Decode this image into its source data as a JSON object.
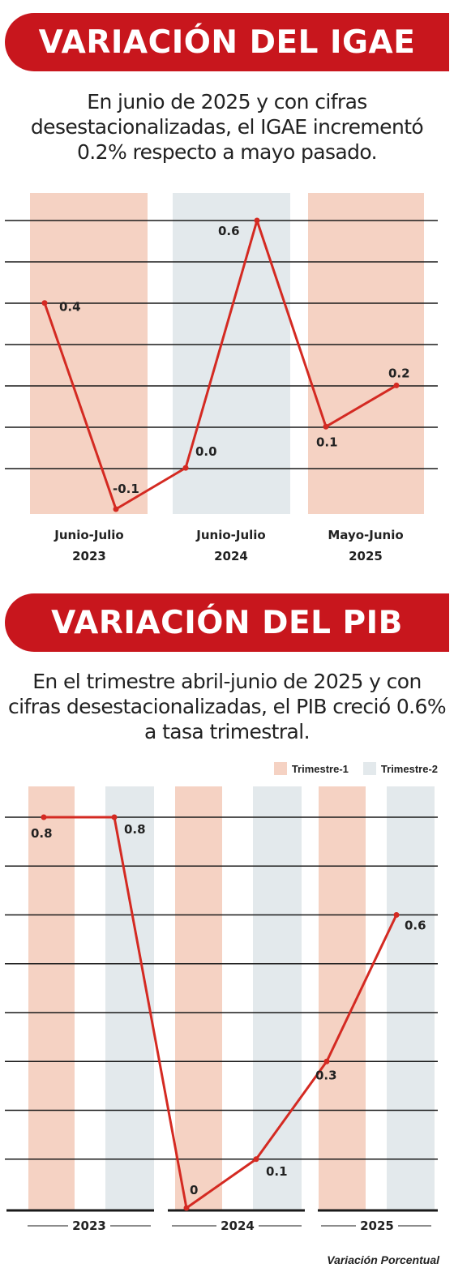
{
  "igae": {
    "title": "VARIACIÓN DEL IGAE",
    "subtitle": "En junio de 2025 y con cifras desestacionalizadas, el IGAE incrementó 0.2% respecto a mayo pasado."
  },
  "pib": {
    "title": "VARIACIÓN DEL PIB",
    "subtitle": "En el trimestre abril-junio de 2025 y con cifras desestacionalizadas, el PIB creció 0.6% a tasa trimestral.",
    "legend": [
      "Trimestre-1",
      "Trimestre-2"
    ]
  },
  "source": "Variación Porcentual",
  "colors": {
    "red": "#c8161d",
    "band_peach": "#f5d2c3",
    "band_blue": "#e3e9ec",
    "line": "#d42a22"
  },
  "chart_data": [
    {
      "type": "line",
      "title": "VARIACIÓN DEL IGAE",
      "groups": [
        "Junio-Julio 2023",
        "Junio-Julio 2024",
        "Mayo-Junio 2025"
      ],
      "points": [
        {
          "group": "Junio-Julio 2023",
          "label": "0.4",
          "y": 0.4
        },
        {
          "group": "Junio-Julio 2023",
          "label": "-0.1",
          "y": -0.1
        },
        {
          "group": "Junio-Julio 2024",
          "label": "0.0",
          "y": 0.0
        },
        {
          "group": "Junio-Julio 2024",
          "label": "0.6",
          "y": 0.6
        },
        {
          "group": "Mayo-Junio 2025",
          "label": "0.1",
          "y": 0.1
        },
        {
          "group": "Mayo-Junio 2025",
          "label": "0.2",
          "y": 0.2
        }
      ],
      "ylim": [
        -0.1,
        0.6
      ],
      "grid": true
    },
    {
      "type": "line",
      "title": "VARIACIÓN DEL PIB",
      "groups": [
        "2023",
        "2024",
        "2025"
      ],
      "series_legend": [
        "Trimestre-1",
        "Trimestre-2"
      ],
      "points": [
        {
          "group": "2023",
          "quarter": "Trimestre-1",
          "label": "0.8",
          "y": 0.8
        },
        {
          "group": "2023",
          "quarter": "Trimestre-2",
          "label": "0.8",
          "y": 0.8
        },
        {
          "group": "2024",
          "quarter": "Trimestre-1",
          "label": "0",
          "y": 0.0
        },
        {
          "group": "2024",
          "quarter": "Trimestre-2",
          "label": "0.1",
          "y": 0.1
        },
        {
          "group": "2025",
          "quarter": "Trimestre-1",
          "label": "0.3",
          "y": 0.3
        },
        {
          "group": "2025",
          "quarter": "Trimestre-2",
          "label": "0.6",
          "y": 0.6
        }
      ],
      "ylim": [
        0,
        0.8
      ],
      "grid": true
    }
  ]
}
